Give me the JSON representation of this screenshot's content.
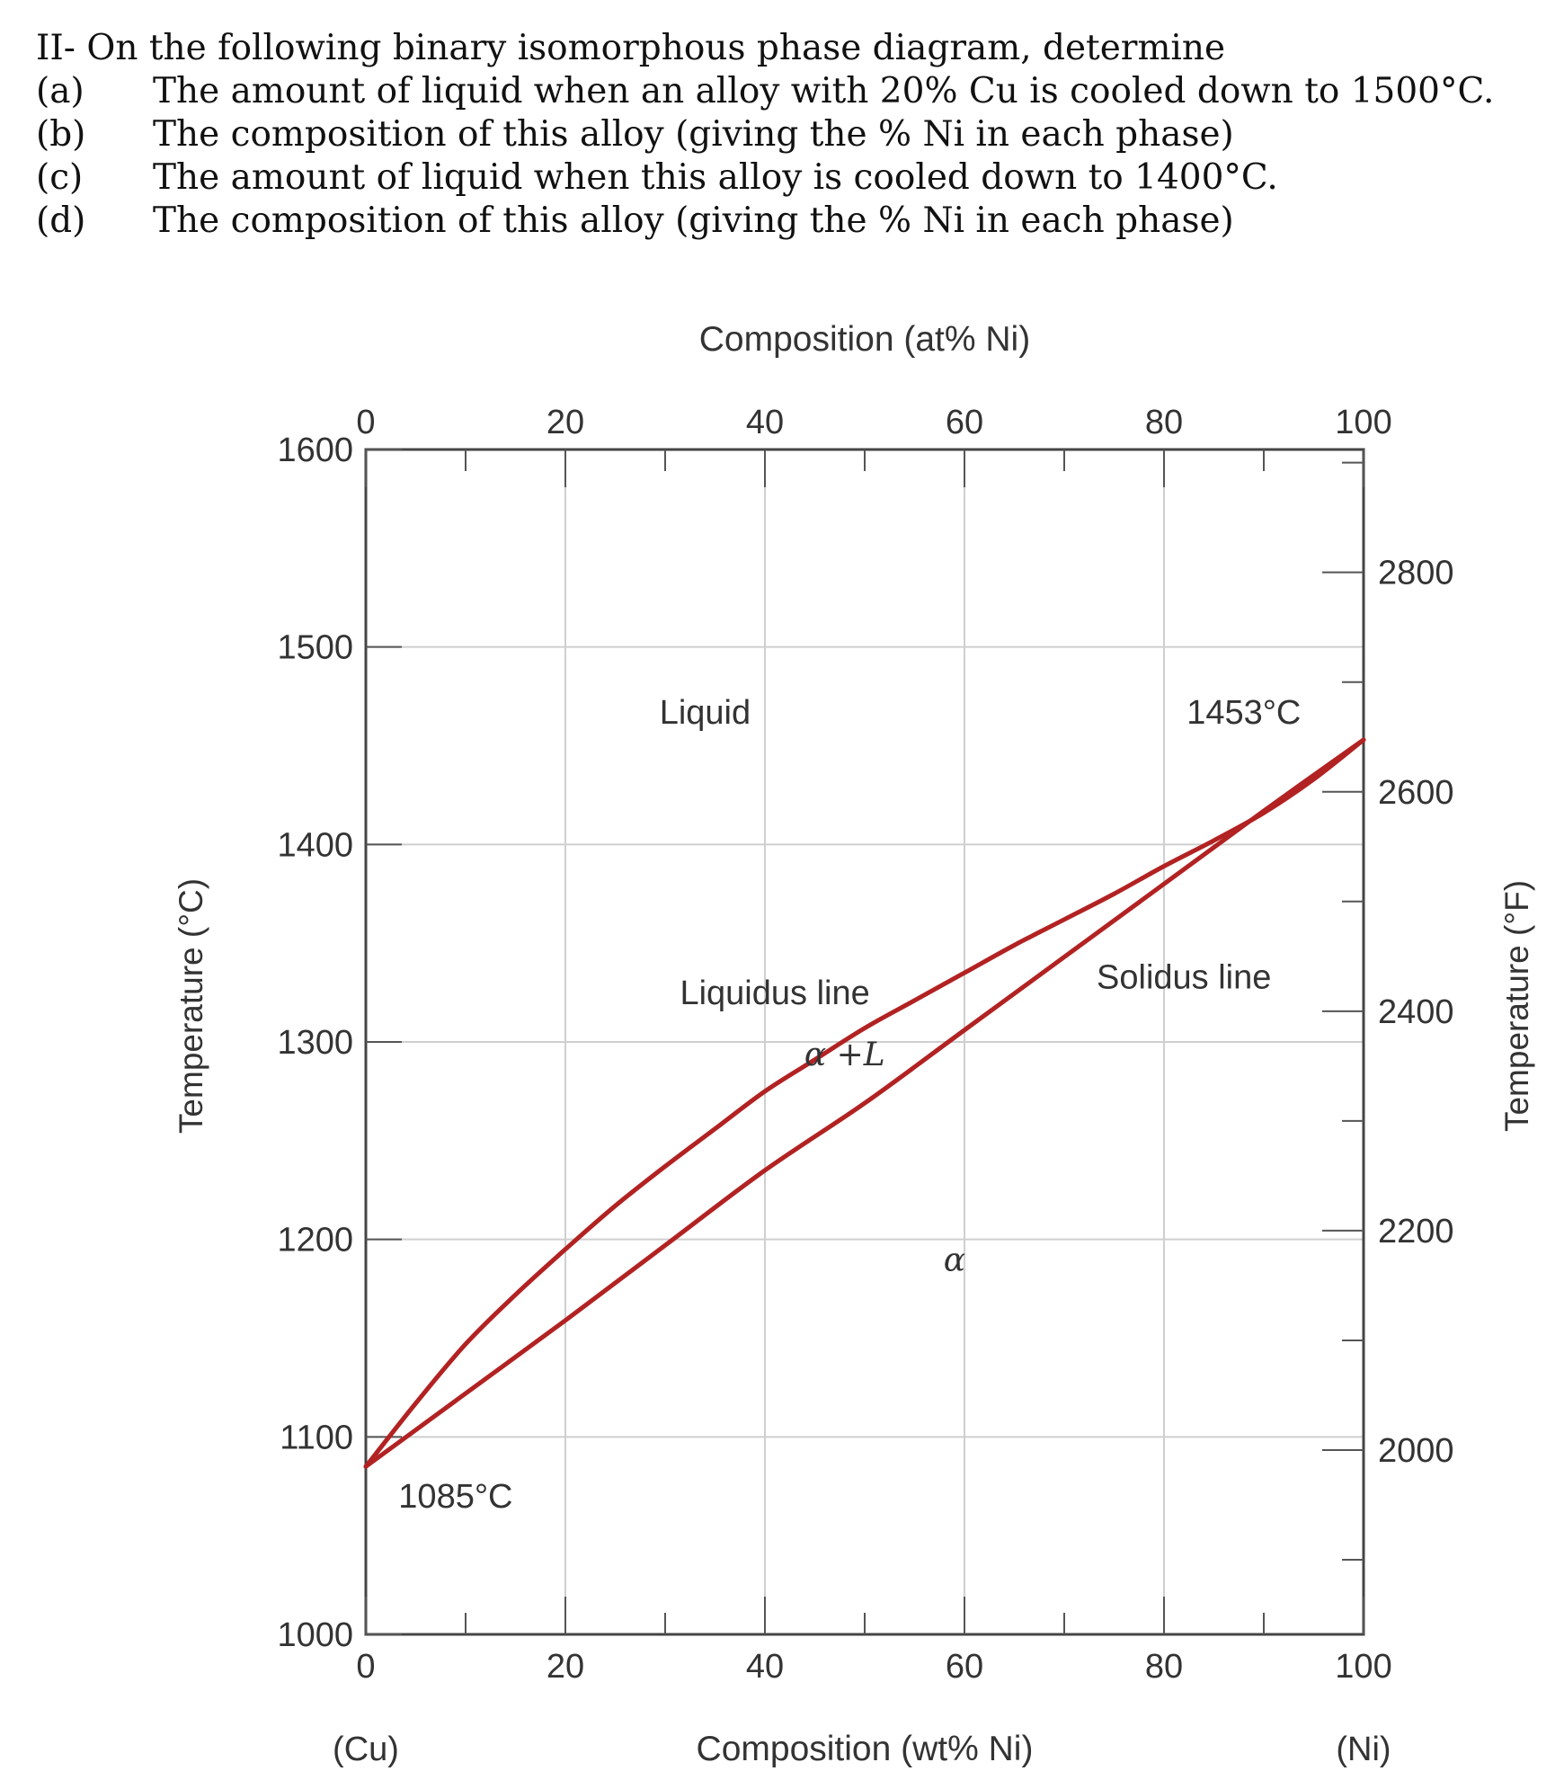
{
  "question": {
    "title": "II- On the following binary isomorphous phase diagram, determine",
    "items": [
      {
        "label": "(a)",
        "text": "The amount of liquid when an alloy with 20% Cu is cooled down to 1500°C."
      },
      {
        "label": "(b)",
        "text": "The composition of this alloy (giving the % Ni in each phase)"
      },
      {
        "label": "(c)",
        "text": "The amount of liquid when this alloy is cooled down to 1400°C."
      },
      {
        "label": "(d)",
        "text": "The composition of this alloy (giving the % Ni in each phase)"
      }
    ]
  },
  "chart_data": {
    "type": "line",
    "title": "",
    "xlabel_bottom": "Composition (wt% Ni)",
    "xlabel_top": "Composition (at% Ni)",
    "ylabel_left": "Temperature (°C)",
    "ylabel_right": "Temperature (°F)",
    "xlim": [
      0,
      100
    ],
    "ylim": [
      1000,
      1600
    ],
    "y2lim_F": [
      1832,
      2912
    ],
    "grid": true,
    "x_ticks_bottom": [
      "0",
      "20",
      "40",
      "60",
      "80",
      "100"
    ],
    "x_ticks_top": [
      "0",
      "20",
      "40",
      "60",
      "80",
      "100"
    ],
    "y_ticks_left": [
      "1000",
      "1100",
      "1200",
      "1300",
      "1400",
      "1500",
      "1600"
    ],
    "y_ticks_right": [
      "2000",
      "2200",
      "2400",
      "2600",
      "2800"
    ],
    "end_labels": {
      "left": "(Cu)",
      "right": "(Ni)"
    },
    "line_color": "#b22222",
    "series": [
      {
        "name": "Liquidus line",
        "x": [
          0,
          5,
          10,
          15,
          20,
          25,
          30,
          35,
          40,
          45,
          50,
          55,
          60,
          65,
          70,
          75,
          80,
          85,
          90,
          95,
          100
        ],
        "y": [
          1085,
          1117,
          1147,
          1172,
          1195,
          1217,
          1237,
          1256,
          1275,
          1291,
          1307,
          1321,
          1335,
          1349,
          1362,
          1375,
          1389,
          1402,
          1416,
          1433,
          1453
        ]
      },
      {
        "name": "Solidus line",
        "x": [
          0,
          10,
          20,
          30,
          40,
          50,
          60,
          70,
          80,
          90,
          100
        ],
        "y": [
          1085,
          1122,
          1159,
          1197,
          1235,
          1269,
          1306,
          1343,
          1380,
          1417,
          1453
        ]
      }
    ],
    "annotations": [
      {
        "text": "Liquid",
        "x": 34,
        "y": 1467
      },
      {
        "text": "1453°C",
        "x": 88,
        "y": 1467
      },
      {
        "text": "Liquidus line",
        "x": 41,
        "y": 1325
      },
      {
        "text": "Solidus line",
        "x": 82,
        "y": 1333
      },
      {
        "text": "α +L",
        "x": 48,
        "y": 1294
      },
      {
        "text": "α",
        "x": 59,
        "y": 1190
      },
      {
        "text": "1085°C",
        "x": 9,
        "y": 1070
      }
    ]
  }
}
